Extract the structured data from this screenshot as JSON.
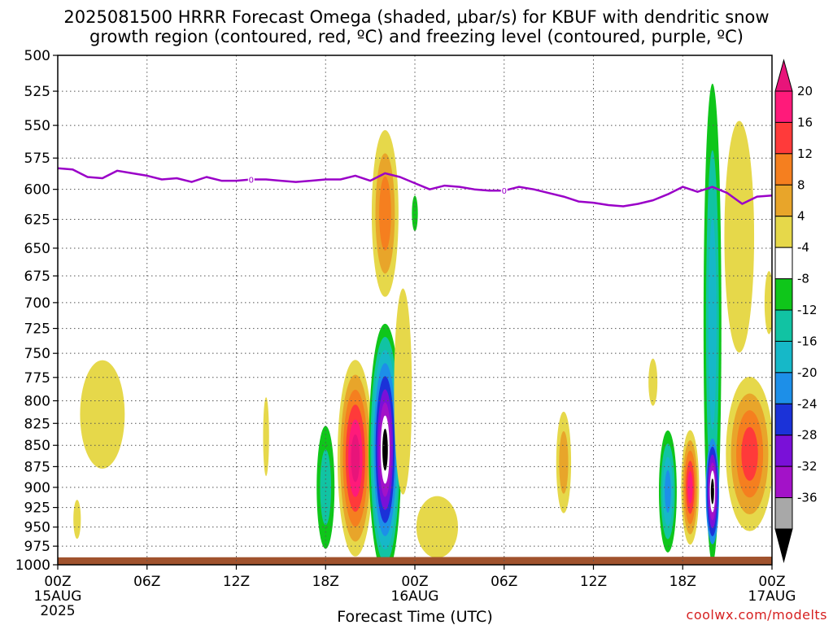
{
  "chart_data": {
    "type": "heatmap",
    "title": [
      "2025081500 HRRR Forecast Omega (shaded, μbar/s) for KBUF with dendritic snow",
      "growth region (contoured, red, ºC) and freezing level (contoured, purple, ºC)"
    ],
    "xlabel": "Forecast Time (UTC)",
    "x_unit": "hours from 00Z 15AUG 2025",
    "xlim": [
      0,
      48
    ],
    "x_ticks": [
      {
        "x": 0,
        "label": "00Z",
        "date": "15AUG",
        "year": "2025"
      },
      {
        "x": 6,
        "label": "06Z",
        "date": "",
        "year": ""
      },
      {
        "x": 12,
        "label": "12Z",
        "date": "",
        "year": ""
      },
      {
        "x": 18,
        "label": "18Z",
        "date": "",
        "year": ""
      },
      {
        "x": 24,
        "label": "00Z",
        "date": "16AUG",
        "year": ""
      },
      {
        "x": 30,
        "label": "06Z",
        "date": "",
        "year": ""
      },
      {
        "x": 36,
        "label": "12Z",
        "date": "",
        "year": ""
      },
      {
        "x": 42,
        "label": "18Z",
        "date": "",
        "year": ""
      },
      {
        "x": 48,
        "label": "00Z",
        "date": "17AUG",
        "year": ""
      }
    ],
    "ylabel": "",
    "y_unit": "hPa",
    "ylim": [
      1000,
      500
    ],
    "y_scale": "log",
    "y_ticks": [
      500,
      525,
      550,
      575,
      600,
      625,
      650,
      675,
      700,
      725,
      750,
      775,
      800,
      825,
      850,
      875,
      900,
      925,
      950,
      975,
      1000
    ],
    "grid": true,
    "colorbar": {
      "unit": "μbar/s",
      "levels": [
        {
          "label": "20",
          "color": "#ff1a7a"
        },
        {
          "label": "16",
          "color": "#ff3a3a"
        },
        {
          "label": "12",
          "color": "#f57f1f"
        },
        {
          "label": "8",
          "color": "#e8a52a"
        },
        {
          "label": "4",
          "color": "#e6d84a"
        },
        {
          "label": "-4",
          "color": "#ffffff"
        },
        {
          "label": "-8",
          "color": "#0fc61a"
        },
        {
          "label": "-12",
          "color": "#11c3a3"
        },
        {
          "label": "-16",
          "color": "#16b8c8"
        },
        {
          "label": "-20",
          "color": "#1d8fe8"
        },
        {
          "label": "-24",
          "color": "#1b32d8"
        },
        {
          "label": "-28",
          "color": "#7a10d8"
        },
        {
          "label": "-32",
          "color": "#a312c8"
        },
        {
          "label": "-36",
          "color": "#a8a8a8"
        }
      ],
      "top_color": "#e8147a",
      "bottom_color": "#000000"
    },
    "omega_features": [
      {
        "x": 1.3,
        "p": 940,
        "dx": 0.25,
        "dp": 25,
        "levels": [
          "#e6d84a"
        ]
      },
      {
        "x": 3.0,
        "p": 815,
        "dx": 1.5,
        "dp": 60,
        "levels": [
          "#e6d84a"
        ]
      },
      {
        "x": 14.0,
        "p": 840,
        "dx": 0.2,
        "dp": 45,
        "levels": [
          "#e6d84a"
        ]
      },
      {
        "x": 18.0,
        "p": 900,
        "dx": 0.6,
        "dp": 75,
        "levels": [
          "#0fc61a",
          "#11c3a3"
        ]
      },
      {
        "x": 20.0,
        "p": 865,
        "dx": 1.2,
        "dp": 115,
        "levels": [
          "#e6d84a",
          "#e8a52a",
          "#f57f1f",
          "#ff3a3a",
          "#ff1a7a",
          "#e8147a"
        ]
      },
      {
        "x": 22.0,
        "p": 855,
        "dx": 1.1,
        "dp": 145,
        "levels": [
          "#0fc61a",
          "#11c3a3",
          "#16b8c8",
          "#1d8fe8",
          "#1b32d8",
          "#7a10d8",
          "#a312c8",
          "#ffffff",
          "#000000"
        ]
      },
      {
        "x": 22.0,
        "p": 620,
        "dx": 0.9,
        "dp": 70,
        "levels": [
          "#e6d84a",
          "#e8a52a",
          "#f57f1f"
        ]
      },
      {
        "x": 23.2,
        "p": 790,
        "dx": 0.6,
        "dp": 110,
        "levels": [
          "#e6d84a"
        ]
      },
      {
        "x": 24.0,
        "p": 620,
        "dx": 0.2,
        "dp": 15,
        "levels": [
          "#0fc61a"
        ]
      },
      {
        "x": 25.5,
        "p": 950,
        "dx": 1.4,
        "dp": 40,
        "levels": [
          "#e6d84a"
        ]
      },
      {
        "x": 34.0,
        "p": 870,
        "dx": 0.5,
        "dp": 60,
        "levels": [
          "#e6d84a",
          "#e8a52a"
        ]
      },
      {
        "x": 40.0,
        "p": 780,
        "dx": 0.3,
        "dp": 25,
        "levels": [
          "#e6d84a"
        ]
      },
      {
        "x": 41.0,
        "p": 905,
        "dx": 0.6,
        "dp": 75,
        "levels": [
          "#0fc61a",
          "#11c3a3",
          "#16b8c8",
          "#1d8fe8"
        ]
      },
      {
        "x": 42.5,
        "p": 900,
        "dx": 0.6,
        "dp": 70,
        "levels": [
          "#e6d84a",
          "#e8a52a",
          "#f57f1f",
          "#ff3a3a",
          "#ff1a7a"
        ]
      },
      {
        "x": 44.0,
        "p": 720,
        "dx": 0.6,
        "dp": 240,
        "levels": [
          "#0fc61a",
          "#11c3a3",
          "#16b8c8"
        ]
      },
      {
        "x": 44.0,
        "p": 905,
        "dx": 0.45,
        "dp": 65,
        "levels": [
          "#1d8fe8",
          "#1b32d8",
          "#7a10d8",
          "#a312c8",
          "#ffffff",
          "#000000"
        ]
      },
      {
        "x": 45.8,
        "p": 640,
        "dx": 1.0,
        "dp": 100,
        "levels": [
          "#e6d84a"
        ]
      },
      {
        "x": 46.5,
        "p": 860,
        "dx": 1.6,
        "dp": 90,
        "levels": [
          "#e6d84a",
          "#e8a52a",
          "#f57f1f",
          "#ff3a3a"
        ]
      },
      {
        "x": 47.8,
        "p": 700,
        "dx": 0.3,
        "dp": 30,
        "levels": [
          "#e6d84a"
        ]
      }
    ],
    "freezing_level": {
      "color": "#9a00c8",
      "label": "0",
      "label_x": [
        13,
        30
      ],
      "x": [
        0,
        1,
        2,
        3,
        4,
        5,
        6,
        7,
        8,
        9,
        10,
        11,
        12,
        13,
        14,
        15,
        16,
        17,
        18,
        19,
        20,
        21,
        22,
        23,
        24,
        25,
        26,
        27,
        28,
        29,
        30,
        31,
        32,
        33,
        34,
        35,
        36,
        37,
        38,
        39,
        40,
        41,
        42,
        43,
        44,
        45,
        46,
        47,
        48
      ],
      "p": [
        583,
        584,
        590,
        591,
        585,
        587,
        589,
        592,
        591,
        594,
        590,
        593,
        593,
        592,
        592,
        593,
        594,
        593,
        592,
        592,
        589,
        593,
        587,
        590,
        595,
        600,
        597,
        598,
        600,
        601,
        601,
        598,
        600,
        603,
        606,
        610,
        611,
        613,
        614,
        612,
        609,
        604,
        598,
        602,
        598,
        603,
        612,
        606,
        605
      ]
    },
    "ground": {
      "color": "#a0522d",
      "p_top": [
        990,
        989
      ]
    }
  },
  "credit": "coolwx.com/modelts"
}
